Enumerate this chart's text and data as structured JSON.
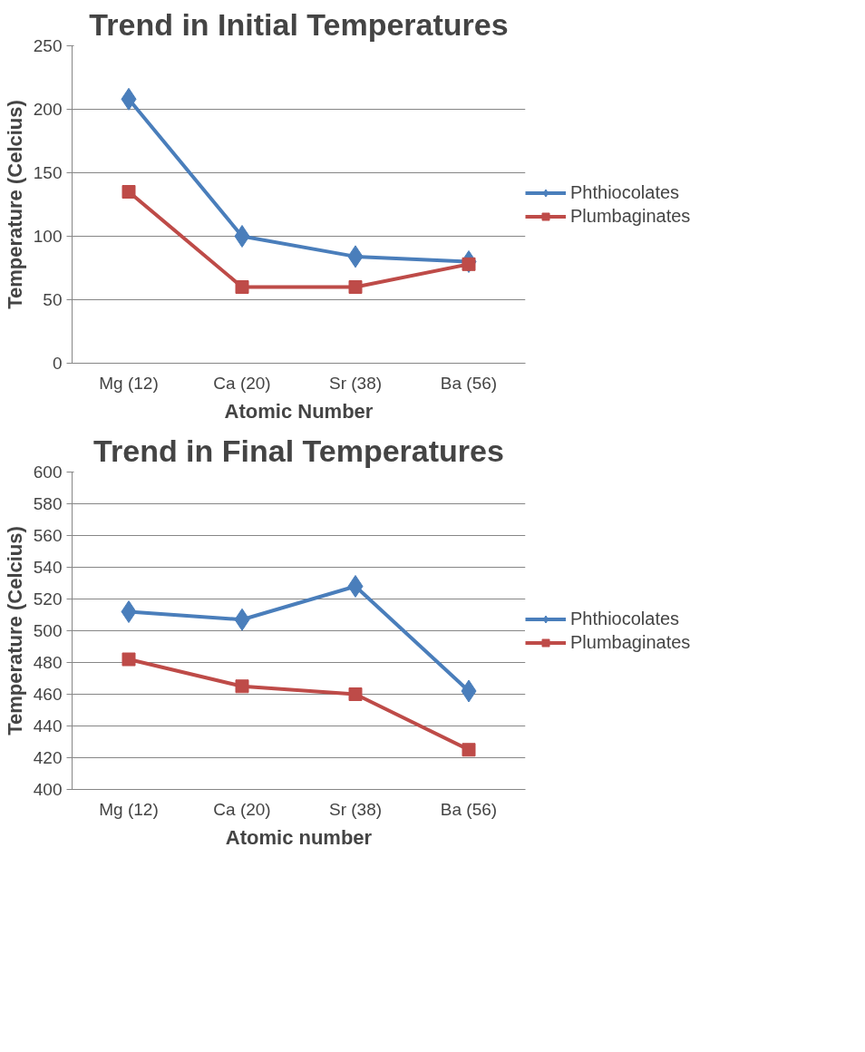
{
  "chart_data": [
    {
      "type": "line",
      "title": "Trend in Initial Temperatures",
      "xlabel": "Atomic Number",
      "ylabel": "Temperature (Celcius)",
      "categories": [
        "Mg (12)",
        "Ca (20)",
        "Sr (38)",
        "Ba (56)"
      ],
      "series": [
        {
          "name": "Phthiocolates",
          "color": "#4a7ebb",
          "marker": "diamond",
          "values": [
            208,
            100,
            84,
            80
          ]
        },
        {
          "name": "Plumbaginates",
          "color": "#be4b48",
          "marker": "square",
          "values": [
            135,
            60,
            60,
            78
          ]
        }
      ],
      "ylim": [
        0,
        250
      ],
      "yticks": [
        0,
        50,
        100,
        150,
        200,
        250
      ],
      "grid": "y",
      "legend": "right"
    },
    {
      "type": "line",
      "title": "Trend in Final Temperatures",
      "xlabel": "Atomic number",
      "ylabel": "Temperature (Celcius)",
      "categories": [
        "Mg (12)",
        "Ca (20)",
        "Sr (38)",
        "Ba (56)"
      ],
      "series": [
        {
          "name": "Phthiocolates",
          "color": "#4a7ebb",
          "marker": "diamond",
          "values": [
            512,
            507,
            528,
            462
          ]
        },
        {
          "name": "Plumbaginates",
          "color": "#be4b48",
          "marker": "square",
          "values": [
            482,
            465,
            460,
            425
          ]
        }
      ],
      "ylim": [
        400,
        600
      ],
      "yticks": [
        400,
        420,
        440,
        460,
        480,
        500,
        520,
        540,
        560,
        580,
        600
      ],
      "grid": "y",
      "legend": "right"
    }
  ]
}
